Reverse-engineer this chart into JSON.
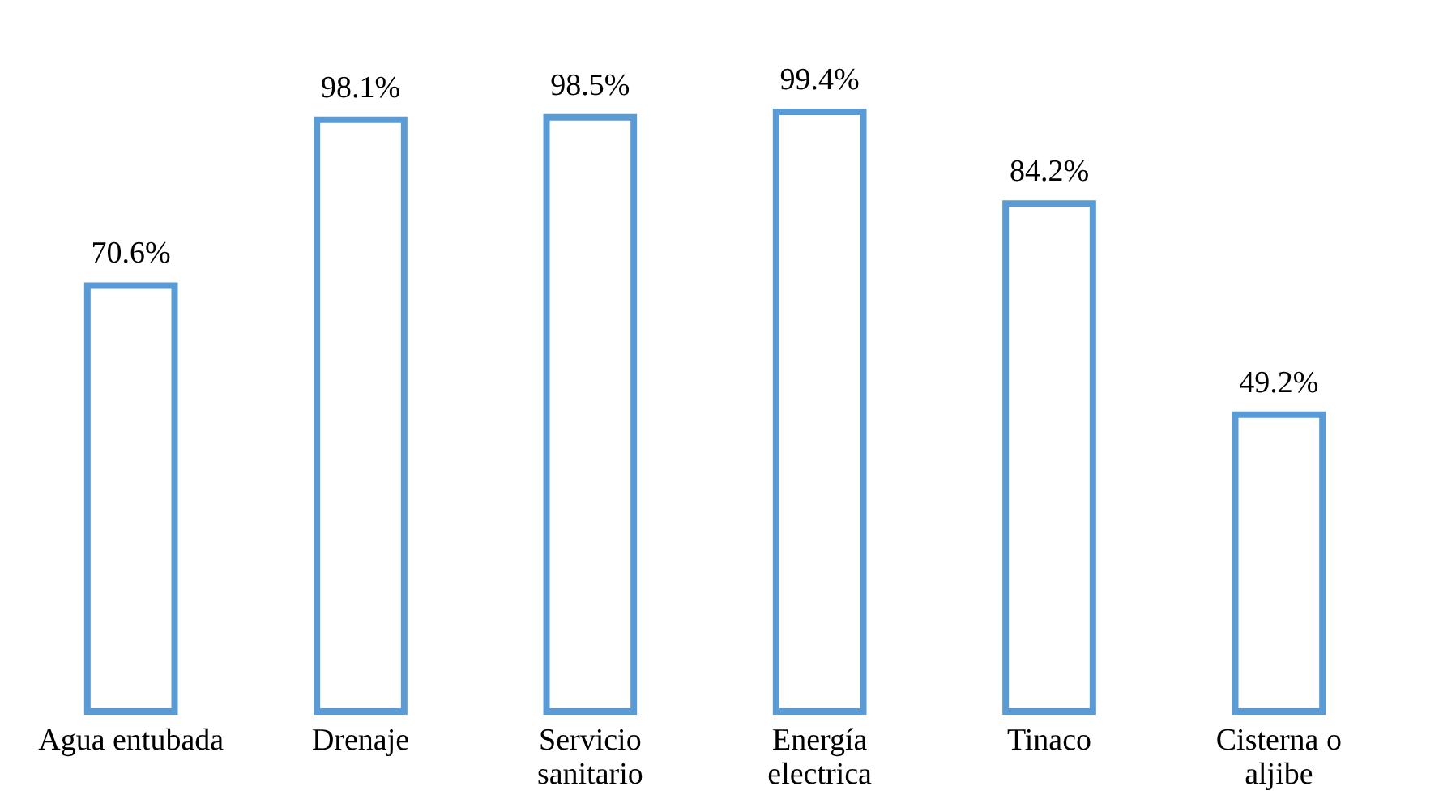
{
  "chart_data": {
    "type": "bar",
    "categories": [
      "Agua entubada",
      "Drenaje",
      "Servicio sanitario",
      "Energía electrica",
      "Tinaco",
      "Cisterna o aljibe"
    ],
    "values": [
      70.6,
      98.1,
      98.5,
      99.4,
      84.2,
      49.2
    ],
    "value_labels": [
      "70.6%",
      "98.1%",
      "98.5%",
      "99.4%",
      "84.2%",
      "49.2%"
    ],
    "color": "#5b9bd5"
  }
}
